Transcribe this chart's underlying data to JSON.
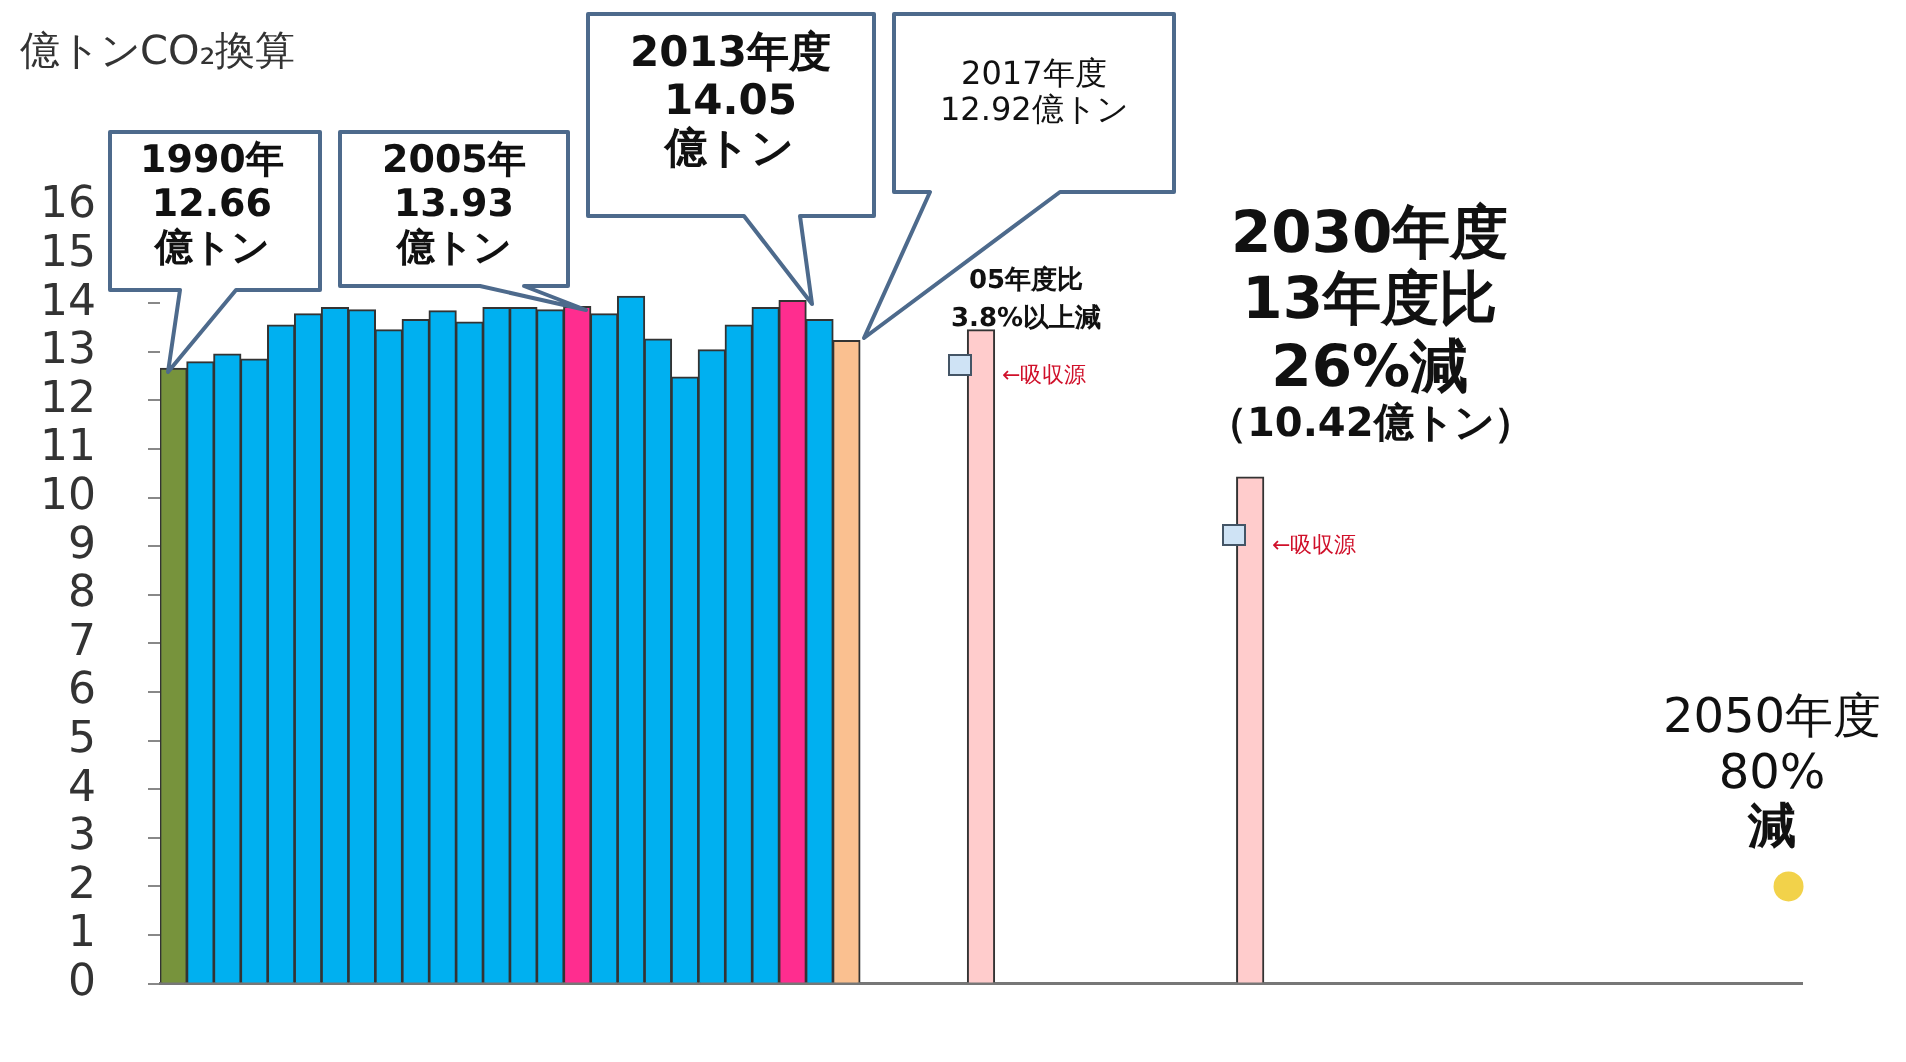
{
  "chart_data": {
    "type": "bar",
    "ylabel": "億トンCO₂換算",
    "categories": [
      null,
      null,
      null,
      null,
      null,
      null,
      null,
      null,
      null,
      null,
      null,
      null,
      null,
      null,
      null,
      null,
      null,
      null,
      null,
      null,
      null,
      null,
      null,
      null,
      null,
      null,
      null,
      null,
      null,
      null,
      null,
      null,
      null,
      null,
      null,
      null,
      null,
      null,
      null,
      null,
      null,
      null,
      null,
      null,
      null,
      null,
      null,
      null,
      null,
      null,
      null,
      null,
      null,
      null,
      null,
      null,
      null,
      null,
      null,
      null,
      null
    ],
    "series": [
      {
        "values": [
          12.66,
          12.79,
          12.95,
          12.85,
          13.55,
          13.78,
          13.91,
          13.86,
          13.45,
          13.66,
          13.84,
          13.61,
          13.91,
          13.91,
          13.86,
          13.93,
          13.78,
          14.14,
          13.26,
          12.48,
          13.04,
          13.55,
          13.91,
          14.05,
          13.66,
          13.23,
          null,
          null,
          null,
          null,
          13.45,
          null,
          null,
          null,
          null,
          null,
          null,
          null,
          null,
          null,
          10.42,
          null,
          null,
          null,
          null,
          null,
          null,
          null,
          null,
          null,
          null,
          null,
          null,
          null,
          null,
          null,
          null,
          null,
          null,
          null,
          null
        ],
        "colors": [
          "#77933c",
          "#00b0f0",
          "#00b0f0",
          "#00b0f0",
          "#00b0f0",
          "#00b0f0",
          "#00b0f0",
          "#00b0f0",
          "#00b0f0",
          "#00b0f0",
          "#00b0f0",
          "#00b0f0",
          "#00b0f0",
          "#00b0f0",
          "#00b0f0",
          "#ff2d8f",
          "#00b0f0",
          "#00b0f0",
          "#00b0f0",
          "#00b0f0",
          "#00b0f0",
          "#00b0f0",
          "#00b0f0",
          "#ff2d8f",
          "#00b0f0",
          "#fac090",
          null,
          null,
          null,
          null,
          "#ffcccc",
          null,
          null,
          null,
          null,
          null,
          null,
          null,
          null,
          null,
          "#ffcccc",
          null,
          null,
          null,
          null,
          null,
          null,
          null,
          null,
          null,
          null,
          null,
          null,
          null,
          null,
          null,
          null,
          null,
          null,
          null,
          null
        ]
      },
      {
        "type": "scatter",
        "color": "#f2d24a",
        "values": [
          null,
          null,
          null,
          null,
          null,
          null,
          null,
          null,
          null,
          null,
          null,
          null,
          null,
          null,
          null,
          null,
          null,
          null,
          null,
          null,
          null,
          null,
          null,
          null,
          null,
          null,
          null,
          null,
          null,
          null,
          null,
          null,
          null,
          null,
          null,
          null,
          null,
          null,
          null,
          null,
          null,
          null,
          null,
          null,
          null,
          null,
          null,
          null,
          null,
          null,
          null,
          null,
          null,
          null,
          null,
          null,
          null,
          null,
          null,
          null,
          2.0
        ]
      }
    ],
    "marker": "circle",
    "ylim": [
      0,
      16
    ],
    "yticks": [
      0,
      1,
      2,
      3,
      4,
      5,
      6,
      7,
      8,
      9,
      10,
      11,
      12,
      13,
      14,
      15,
      16
    ],
    "tick_labels": "y",
    "annotations": [
      "1990年\n12.66\n億トン",
      "2005年\n13.93\n億トン",
      "2013年度\n14.05\n億トン",
      "2017年度\n12.92億トン",
      "05年度比\n3.8%以上減",
      "2030年度\n13年度比\n26%減",
      "（10.42億トン）",
      "2050年度\n80%\n減",
      "←吸収源",
      "←吸収源"
    ]
  }
}
